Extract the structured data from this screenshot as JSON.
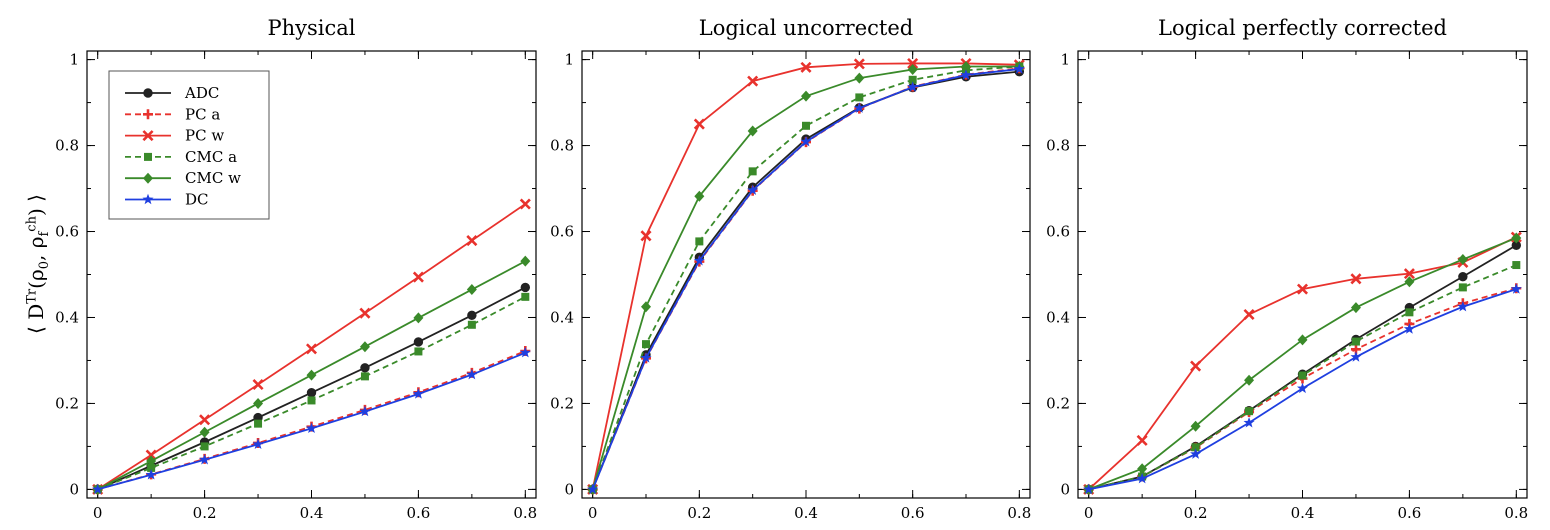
{
  "chart_data": [
    {
      "type": "line",
      "title": "Physical",
      "ylabel": "⟨D^Tr(ρ0, ρf^ch)⟩",
      "x": [
        0,
        0.1,
        0.2,
        0.3,
        0.4,
        0.5,
        0.6,
        0.7,
        0.8
      ],
      "xlim": [
        -0.02,
        0.82
      ],
      "ylim": [
        -0.02,
        1.02
      ],
      "xticks": [
        "0",
        "0.2",
        "0.4",
        "0.6",
        "0.8"
      ],
      "yticks": [
        "0",
        "0.2",
        "0.4",
        "0.6",
        "0.8",
        "1"
      ],
      "legend": "top-left",
      "series": [
        {
          "name": "ADC",
          "color": "#222222",
          "marker": "circle",
          "dash": "solid",
          "values": [
            0,
            0.055,
            0.11,
            0.167,
            0.225,
            0.283,
            0.343,
            0.405,
            0.47
          ]
        },
        {
          "name": "PC a",
          "color": "#e8322d",
          "marker": "plus",
          "dash": "dashed",
          "values": [
            0,
            0.035,
            0.071,
            0.108,
            0.146,
            0.185,
            0.226,
            0.271,
            0.322
          ]
        },
        {
          "name": "PC w",
          "color": "#e8322d",
          "marker": "x",
          "dash": "solid",
          "values": [
            0,
            0.08,
            0.162,
            0.244,
            0.327,
            0.41,
            0.494,
            0.579,
            0.664
          ]
        },
        {
          "name": "CMC a",
          "color": "#3a8a2a",
          "marker": "square",
          "dash": "dashed",
          "values": [
            0,
            0.05,
            0.1,
            0.153,
            0.207,
            0.263,
            0.321,
            0.383,
            0.448
          ]
        },
        {
          "name": "CMC w",
          "color": "#3a8a2a",
          "marker": "diamond",
          "dash": "solid",
          "values": [
            0,
            0.066,
            0.133,
            0.2,
            0.266,
            0.332,
            0.399,
            0.465,
            0.531
          ]
        },
        {
          "name": "DC",
          "color": "#1f3fe0",
          "marker": "star",
          "dash": "solid",
          "values": [
            0,
            0.034,
            0.069,
            0.105,
            0.142,
            0.181,
            0.222,
            0.267,
            0.318
          ]
        }
      ]
    },
    {
      "type": "line",
      "title": "Logical uncorrected",
      "x": [
        0,
        0.1,
        0.2,
        0.3,
        0.4,
        0.5,
        0.6,
        0.7,
        0.8
      ],
      "xlim": [
        -0.02,
        0.82
      ],
      "ylim": [
        -0.02,
        1.02
      ],
      "xticks": [
        "0",
        "0.2",
        "0.4",
        "0.6",
        "0.8"
      ],
      "yticks": [
        "0",
        "0.2",
        "0.4",
        "0.6",
        "0.8",
        "1"
      ],
      "series": [
        {
          "name": "ADC",
          "color": "#222222",
          "marker": "circle",
          "dash": "solid",
          "values": [
            0,
            0.313,
            0.54,
            0.703,
            0.815,
            0.888,
            0.935,
            0.96,
            0.972
          ]
        },
        {
          "name": "PC a",
          "color": "#e8322d",
          "marker": "plus",
          "dash": "dashed",
          "values": [
            0,
            0.305,
            0.53,
            0.695,
            0.808,
            0.886,
            0.937,
            0.965,
            0.98
          ]
        },
        {
          "name": "PC w",
          "color": "#e8322d",
          "marker": "x",
          "dash": "solid",
          "values": [
            0,
            0.59,
            0.85,
            0.95,
            0.982,
            0.99,
            0.991,
            0.991,
            0.988
          ]
        },
        {
          "name": "CMC a",
          "color": "#3a8a2a",
          "marker": "square",
          "dash": "dashed",
          "values": [
            0,
            0.338,
            0.577,
            0.74,
            0.846,
            0.912,
            0.953,
            0.975,
            0.984
          ]
        },
        {
          "name": "CMC w",
          "color": "#3a8a2a",
          "marker": "diamond",
          "dash": "solid",
          "values": [
            0,
            0.425,
            0.682,
            0.834,
            0.915,
            0.957,
            0.977,
            0.984,
            0.984
          ]
        },
        {
          "name": "DC",
          "color": "#1f3fe0",
          "marker": "star",
          "dash": "solid",
          "values": [
            0,
            0.306,
            0.532,
            0.696,
            0.809,
            0.887,
            0.936,
            0.964,
            0.978
          ]
        }
      ]
    },
    {
      "type": "line",
      "title": "Logical perfectly corrected",
      "x": [
        0,
        0.1,
        0.2,
        0.3,
        0.4,
        0.5,
        0.6,
        0.7,
        0.8
      ],
      "xlim": [
        -0.02,
        0.82
      ],
      "ylim": [
        -0.02,
        1.02
      ],
      "xticks": [
        "0",
        "0.2",
        "0.4",
        "0.6",
        "0.8"
      ],
      "yticks": [
        "0",
        "0.2",
        "0.4",
        "0.6",
        "0.8",
        "1"
      ],
      "series": [
        {
          "name": "ADC",
          "color": "#222222",
          "marker": "circle",
          "dash": "solid",
          "values": [
            0,
            0.03,
            0.1,
            0.183,
            0.268,
            0.349,
            0.423,
            0.495,
            0.568
          ]
        },
        {
          "name": "PC a",
          "color": "#e8322d",
          "marker": "plus",
          "dash": "dashed",
          "values": [
            0,
            0.03,
            0.097,
            0.18,
            0.258,
            0.326,
            0.385,
            0.433,
            0.468
          ]
        },
        {
          "name": "PC w",
          "color": "#e8322d",
          "marker": "x",
          "dash": "solid",
          "values": [
            0,
            0.114,
            0.287,
            0.407,
            0.466,
            0.49,
            0.502,
            0.528,
            0.587
          ]
        },
        {
          "name": "CMC a",
          "color": "#3a8a2a",
          "marker": "square",
          "dash": "dashed",
          "values": [
            0,
            0.03,
            0.098,
            0.182,
            0.265,
            0.344,
            0.412,
            0.47,
            0.522
          ]
        },
        {
          "name": "CMC w",
          "color": "#3a8a2a",
          "marker": "diamond",
          "dash": "solid",
          "values": [
            0,
            0.048,
            0.147,
            0.254,
            0.348,
            0.423,
            0.483,
            0.535,
            0.585
          ]
        },
        {
          "name": "DC",
          "color": "#1f3fe0",
          "marker": "star",
          "dash": "solid",
          "values": [
            0,
            0.025,
            0.082,
            0.155,
            0.235,
            0.308,
            0.373,
            0.425,
            0.466
          ]
        }
      ]
    }
  ]
}
